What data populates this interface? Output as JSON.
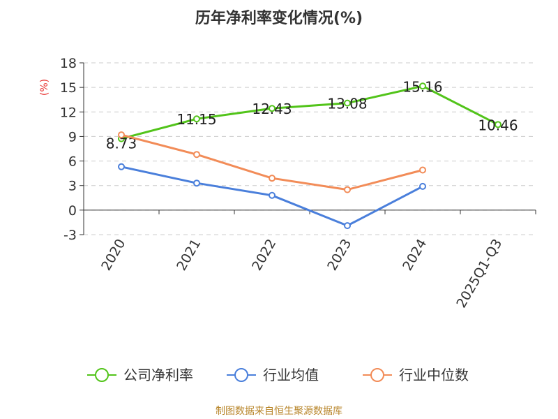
{
  "title": "历年净利率变化情况(%)",
  "source": "制图数据来自恒生聚源数据库",
  "colors": {
    "company": "#52c41a",
    "industry_avg": "#4a7fdb",
    "industry_median": "#f28c58",
    "unit_label": "#e8312f",
    "axis": "#333333",
    "grid": "#cccccc"
  },
  "chart_data": {
    "type": "line",
    "title": "历年净利率变化情况(%)",
    "ylabel": "(%)",
    "xlabel": "",
    "categories": [
      "2020",
      "2021",
      "2022",
      "2023",
      "2024",
      "2025Q1-Q3"
    ],
    "ylim": [
      -3,
      18
    ],
    "yticks": [
      -3,
      0,
      3,
      6,
      9,
      12,
      15,
      18
    ],
    "ytick_labels": [
      "-3",
      "0",
      "3",
      "6",
      "9",
      "12",
      "15",
      "18"
    ],
    "grid": true,
    "legend_position": "bottom",
    "series": [
      {
        "name": "公司净利率",
        "color": "#52c41a",
        "values": [
          8.73,
          11.15,
          12.43,
          13.08,
          15.16,
          10.46
        ],
        "labels": [
          "8.73",
          "11.15",
          "12.43",
          "13.08",
          "15.16",
          "10.46"
        ]
      },
      {
        "name": "行业均值",
        "color": "#4a7fdb",
        "values": [
          5.3,
          3.3,
          1.8,
          -1.9,
          2.9,
          null
        ]
      },
      {
        "name": "行业中位数",
        "color": "#f28c58",
        "values": [
          9.2,
          6.8,
          3.9,
          2.5,
          4.9,
          null
        ]
      }
    ]
  }
}
